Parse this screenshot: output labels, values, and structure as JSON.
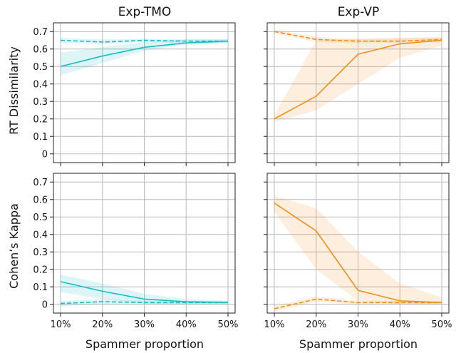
{
  "chart_data": {
    "type": "line",
    "columns": [
      "Exp-TMO",
      "Exp-VP"
    ],
    "rows": [
      "RT Dissimilarity",
      "Cohen’s Kappa"
    ],
    "xlabel": "Spammer proportion",
    "x_ticks": [
      "10%",
      "20%",
      "30%",
      "40%",
      "50%"
    ],
    "x": [
      10,
      20,
      30,
      40,
      50
    ],
    "ylim": [
      -0.05,
      0.75
    ],
    "y_ticks": [
      0,
      0.1,
      0.2,
      0.3,
      0.4,
      0.5,
      0.6,
      0.7
    ],
    "y_tick_labels": [
      "0",
      "0.1",
      "0.2",
      "0.3",
      "0.4",
      "0.5",
      "0.6",
      "0.7"
    ],
    "grid": true,
    "panels": [
      {
        "row": "RT Dissimilarity",
        "column": "Exp-TMO",
        "color": "#1bbcc4",
        "solid": {
          "values": [
            0.5,
            0.56,
            0.61,
            0.635,
            0.645
          ],
          "lower": [
            0.45,
            0.52,
            0.59,
            0.625,
            0.635
          ],
          "upper": [
            0.58,
            0.61,
            0.64,
            0.655,
            0.655
          ]
        },
        "dashed": {
          "values": [
            0.65,
            0.64,
            0.65,
            0.645,
            0.645
          ],
          "lower": [
            0.635,
            0.63,
            0.64,
            0.635,
            0.635
          ],
          "upper": [
            0.665,
            0.655,
            0.66,
            0.655,
            0.655
          ]
        }
      },
      {
        "row": "RT Dissimilarity",
        "column": "Exp-VP",
        "color": "#f28e1c",
        "solid": {
          "values": [
            0.2,
            0.33,
            0.57,
            0.63,
            0.65
          ],
          "lower": [
            0.18,
            0.25,
            0.4,
            0.55,
            0.62
          ],
          "upper": [
            0.22,
            0.65,
            0.66,
            0.665,
            0.665
          ]
        },
        "dashed": {
          "values": [
            0.7,
            0.655,
            0.645,
            0.645,
            0.655
          ],
          "lower": [
            0.69,
            0.64,
            0.635,
            0.635,
            0.64
          ],
          "upper": [
            0.71,
            0.67,
            0.655,
            0.66,
            0.67
          ]
        }
      },
      {
        "row": "Cohen’s Kappa",
        "column": "Exp-TMO",
        "color": "#1bbcc4",
        "solid": {
          "values": [
            0.13,
            0.075,
            0.03,
            0.015,
            0.01
          ],
          "lower": [
            0.07,
            0.03,
            0.005,
            0.0,
            0.0
          ],
          "upper": [
            0.17,
            0.12,
            0.06,
            0.03,
            0.02
          ]
        },
        "dashed": {
          "values": [
            0.005,
            0.015,
            0.01,
            0.01,
            0.01
          ],
          "lower": [
            -0.01,
            0.0,
            0.0,
            0.0,
            0.0
          ],
          "upper": [
            0.02,
            0.03,
            0.02,
            0.02,
            0.02
          ]
        }
      },
      {
        "row": "Cohen’s Kappa",
        "column": "Exp-VP",
        "color": "#f28e1c",
        "solid": {
          "values": [
            0.58,
            0.42,
            0.08,
            0.02,
            0.01
          ],
          "lower": [
            0.53,
            0.2,
            0.02,
            0.0,
            0.0
          ],
          "upper": [
            0.62,
            0.55,
            0.3,
            0.12,
            0.04
          ]
        },
        "dashed": {
          "values": [
            -0.025,
            0.03,
            0.01,
            0.01,
            0.01
          ],
          "lower": [
            -0.04,
            0.015,
            0.0,
            0.0,
            0.0
          ],
          "upper": [
            -0.01,
            0.045,
            0.02,
            0.02,
            0.02
          ]
        }
      }
    ]
  }
}
